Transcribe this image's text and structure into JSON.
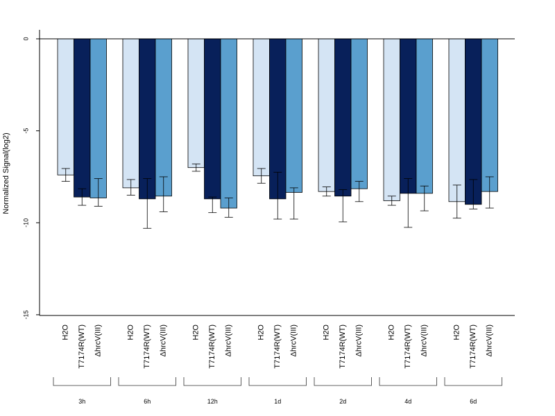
{
  "chart_data": {
    "type": "bar",
    "ylabel": "Normalized Signal(log2)",
    "ylim": [
      -15,
      0.5
    ],
    "yticks": [
      0,
      -5,
      -10,
      -15
    ],
    "groups": [
      "3h",
      "6h",
      "12h",
      "1d",
      "2d",
      "4d",
      "6d"
    ],
    "conditions": [
      "H2O",
      "T7174R(WT)",
      "ΔhrcV(III)"
    ],
    "series": [
      {
        "condition": "H2O",
        "values": [
          -7.4,
          -8.1,
          -7.0,
          -7.45,
          -8.3,
          -8.8,
          -8.85
        ],
        "err_low": [
          -7.75,
          -8.5,
          -7.2,
          -7.85,
          -8.55,
          -9.05,
          -9.75
        ],
        "err_high": [
          -7.05,
          -7.65,
          -6.8,
          -7.05,
          -8.05,
          -8.55,
          -7.95
        ]
      },
      {
        "condition": "T7174R(WT)",
        "values": [
          -8.6,
          -8.7,
          -8.7,
          -8.7,
          -8.55,
          -8.4,
          -9.0
        ],
        "err_low": [
          -9.05,
          -10.3,
          -9.45,
          -9.8,
          -9.95,
          -10.25,
          -9.25
        ],
        "err_high": [
          -8.15,
          -7.6,
          -8.6,
          -7.25,
          -8.2,
          -7.6,
          -7.65
        ]
      },
      {
        "condition": "ΔhrcV(III)",
        "values": [
          -8.65,
          -8.55,
          -9.2,
          -8.35,
          -8.15,
          -8.4,
          -8.3
        ],
        "err_low": [
          -9.1,
          -9.4,
          -9.7,
          -9.8,
          -8.85,
          -9.35,
          -9.2
        ],
        "err_high": [
          -7.6,
          -7.5,
          -8.65,
          -8.1,
          -7.75,
          -8.0,
          -7.5
        ]
      }
    ],
    "colors": [
      "#d4e4f4",
      "#08205a",
      "#5a9fce"
    ],
    "grid": false,
    "legend": "none"
  }
}
